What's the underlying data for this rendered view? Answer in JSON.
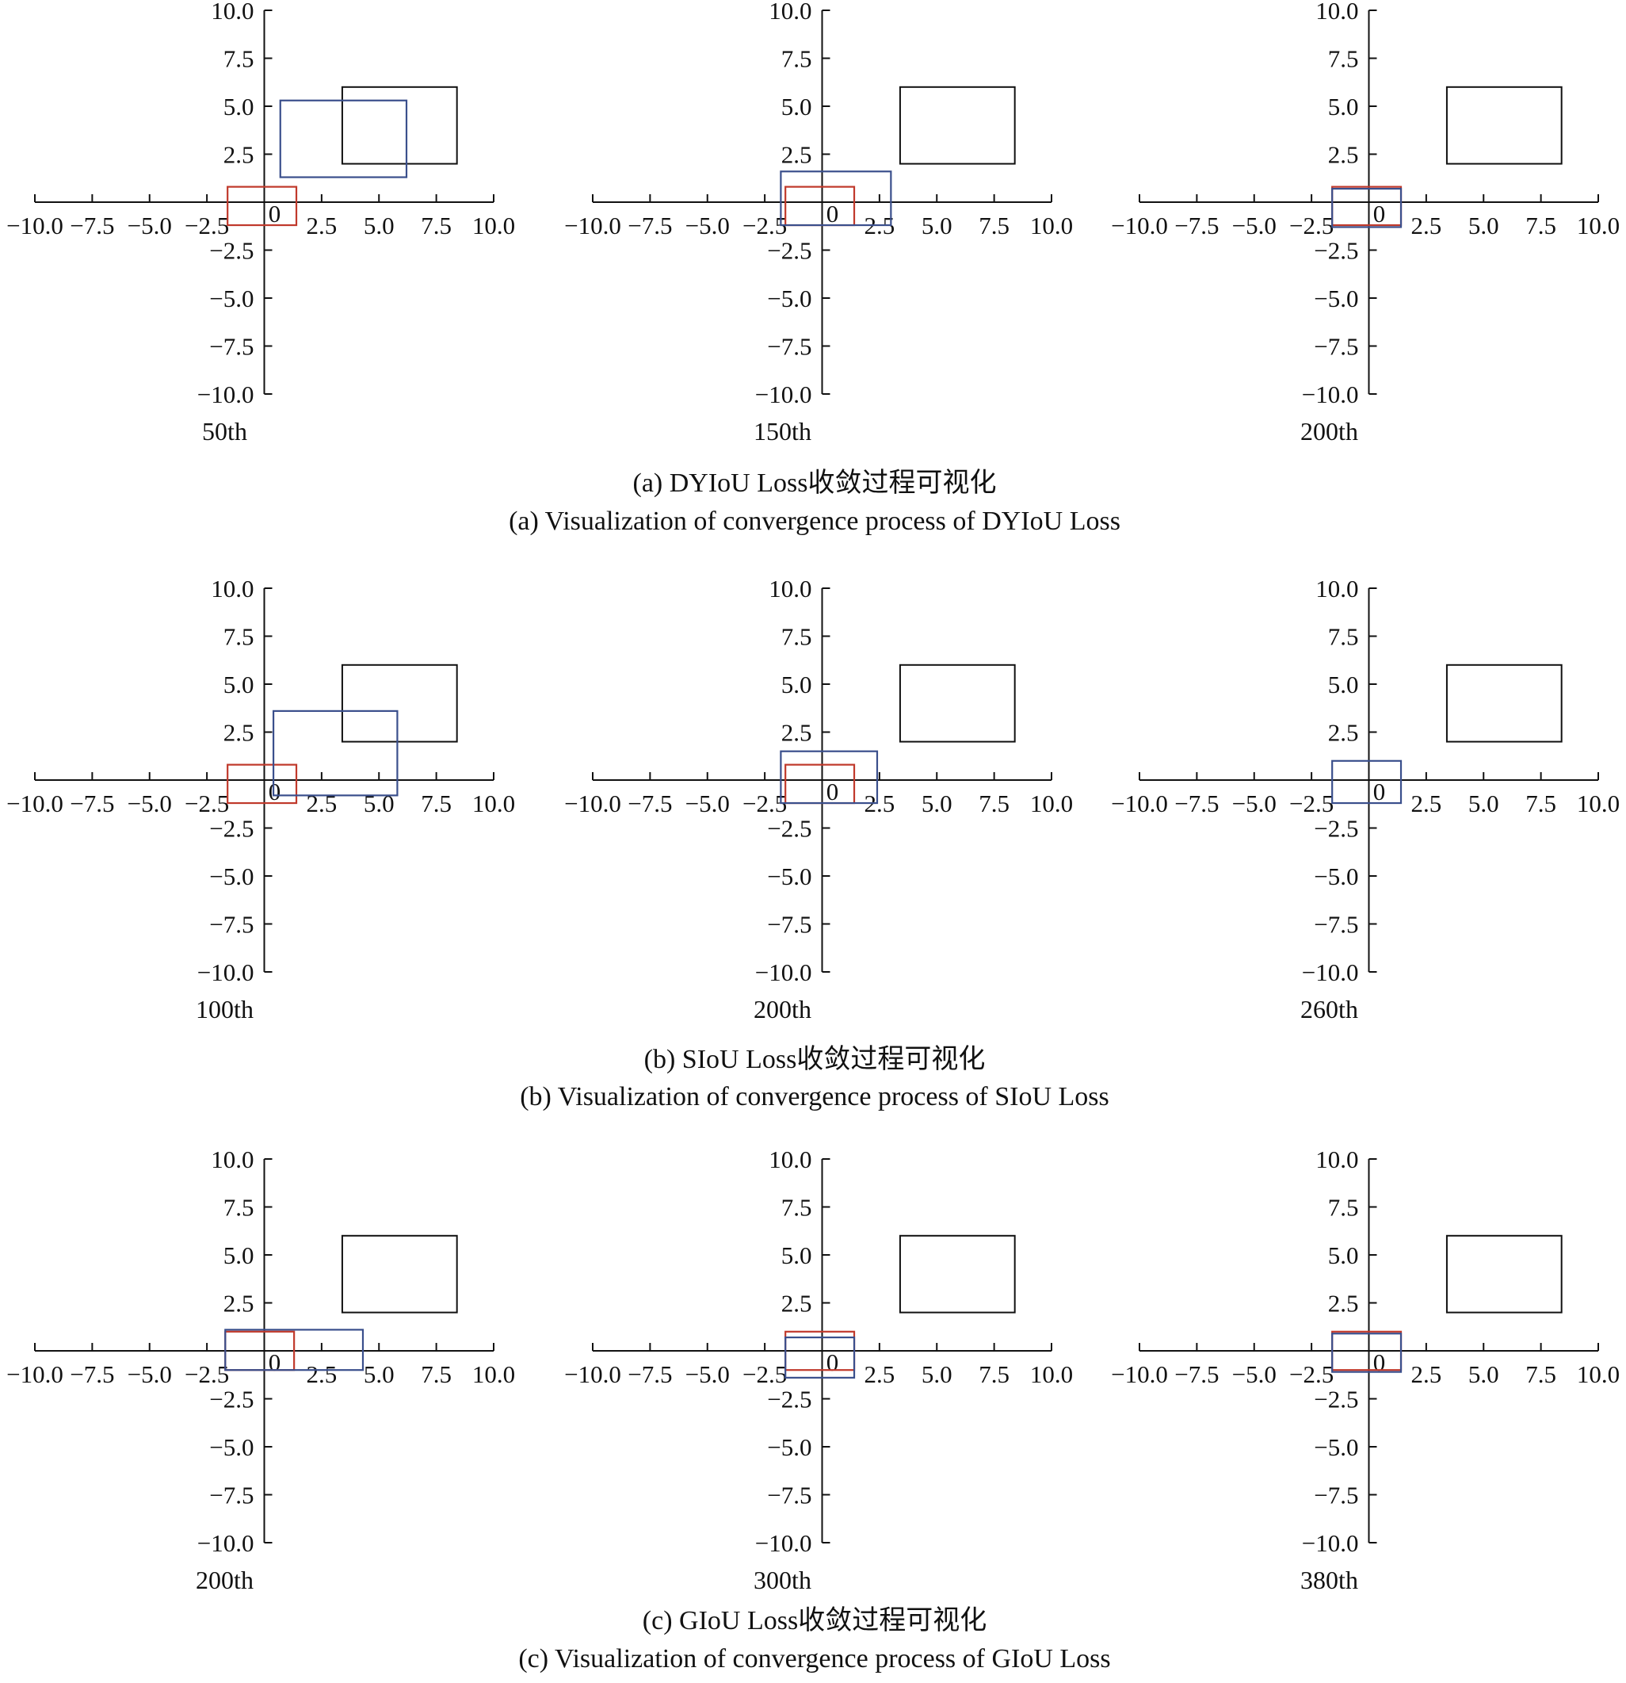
{
  "colors": {
    "target": "#111111",
    "anchor": "#c0392b",
    "predicted": "#3a4f8c",
    "axis": "#111111"
  },
  "chart_data": [
    {
      "type": "rectangles",
      "group": "a",
      "caption_cn": "(a) DYIoU Loss收敛过程可视化",
      "caption_en": "(a) Visualization of convergence process of DYIoU Loss",
      "panels": [
        {
          "subtitle": "50th",
          "xlim": [
            -10,
            10
          ],
          "ylim": [
            -10,
            10
          ],
          "xticks": [
            "-10.0",
            "-7.5",
            "-5.0",
            "-2.5",
            "0",
            "2.5",
            "5.0",
            "7.5",
            "10.0"
          ],
          "yticks": [
            "10.0",
            "7.5",
            "5.0",
            "2.5",
            "-2.5",
            "-5.0",
            "-7.5",
            "-10.0"
          ],
          "boxes": [
            {
              "role": "target",
              "x1": 3.4,
              "y1": 2.0,
              "x2": 8.4,
              "y2": 6.0
            },
            {
              "role": "anchor",
              "x1": -1.6,
              "y1": -1.2,
              "x2": 1.4,
              "y2": 0.8
            },
            {
              "role": "predicted",
              "x1": 0.7,
              "y1": 1.3,
              "x2": 6.2,
              "y2": 5.3
            }
          ]
        },
        {
          "subtitle": "150th",
          "xlim": [
            -10,
            10
          ],
          "ylim": [
            -10,
            10
          ],
          "xticks": [
            "-10.0",
            "-7.5",
            "-5.0",
            "-2.5",
            "0",
            "2.5",
            "5.0",
            "7.5",
            "10.0"
          ],
          "yticks": [
            "10.0",
            "7.5",
            "5.0",
            "2.5",
            "-2.5",
            "-5.0",
            "-7.5",
            "-10.0"
          ],
          "boxes": [
            {
              "role": "target",
              "x1": 3.4,
              "y1": 2.0,
              "x2": 8.4,
              "y2": 6.0
            },
            {
              "role": "anchor",
              "x1": -1.6,
              "y1": -1.2,
              "x2": 1.4,
              "y2": 0.8
            },
            {
              "role": "predicted",
              "x1": -1.8,
              "y1": -1.2,
              "x2": 3.0,
              "y2": 1.6
            }
          ]
        },
        {
          "subtitle": "200th",
          "xlim": [
            -10,
            10
          ],
          "ylim": [
            -10,
            10
          ],
          "xticks": [
            "-10.0",
            "-7.5",
            "-5.0",
            "-2.5",
            "0",
            "2.5",
            "5.0",
            "7.5",
            "10.0"
          ],
          "yticks": [
            "10.0",
            "7.5",
            "5.0",
            "2.5",
            "-2.5",
            "-5.0",
            "-7.5",
            "-10.0"
          ],
          "boxes": [
            {
              "role": "target",
              "x1": 3.4,
              "y1": 2.0,
              "x2": 8.4,
              "y2": 6.0
            },
            {
              "role": "anchor",
              "x1": -1.6,
              "y1": -1.2,
              "x2": 1.4,
              "y2": 0.8
            },
            {
              "role": "predicted",
              "x1": -1.6,
              "y1": -1.3,
              "x2": 1.4,
              "y2": 0.7
            }
          ]
        }
      ]
    },
    {
      "type": "rectangles",
      "group": "b",
      "caption_cn": "(b) SIoU Loss收敛过程可视化",
      "caption_en": "(b) Visualization of convergence process of SIoU Loss",
      "panels": [
        {
          "subtitle": "100th",
          "xlim": [
            -10,
            10
          ],
          "ylim": [
            -10,
            10
          ],
          "xticks": [
            "-10.0",
            "-7.5",
            "-5.0",
            "-2.5",
            "0",
            "2.5",
            "5.0",
            "7.5",
            "10.0"
          ],
          "yticks": [
            "10.0",
            "7.5",
            "5.0",
            "2.5",
            "-2.5",
            "-5.0",
            "-7.5",
            "-10.0"
          ],
          "boxes": [
            {
              "role": "target",
              "x1": 3.4,
              "y1": 2.0,
              "x2": 8.4,
              "y2": 6.0
            },
            {
              "role": "anchor",
              "x1": -1.6,
              "y1": -1.2,
              "x2": 1.4,
              "y2": 0.8
            },
            {
              "role": "predicted",
              "x1": 0.4,
              "y1": -0.8,
              "x2": 5.8,
              "y2": 3.6
            }
          ]
        },
        {
          "subtitle": "200th",
          "xlim": [
            -10,
            10
          ],
          "ylim": [
            -10,
            10
          ],
          "xticks": [
            "-10.0",
            "-7.5",
            "-5.0",
            "-2.5",
            "0",
            "2.5",
            "5.0",
            "7.5",
            "10.0"
          ],
          "yticks": [
            "10.0",
            "7.5",
            "5.0",
            "2.5",
            "-2.5",
            "-5.0",
            "-7.5",
            "-10.0"
          ],
          "boxes": [
            {
              "role": "target",
              "x1": 3.4,
              "y1": 2.0,
              "x2": 8.4,
              "y2": 6.0
            },
            {
              "role": "anchor",
              "x1": -1.6,
              "y1": -1.2,
              "x2": 1.4,
              "y2": 0.8
            },
            {
              "role": "predicted",
              "x1": -1.8,
              "y1": -1.2,
              "x2": 2.4,
              "y2": 1.5
            }
          ]
        },
        {
          "subtitle": "260th",
          "xlim": [
            -10,
            10
          ],
          "ylim": [
            -10,
            10
          ],
          "xticks": [
            "-10.0",
            "-7.5",
            "-5.0",
            "-2.5",
            "0",
            "2.5",
            "5.0",
            "7.5",
            "10.0"
          ],
          "yticks": [
            "10.0",
            "7.5",
            "5.0",
            "2.5",
            "-2.5",
            "-5.0",
            "-7.5",
            "-10.0"
          ],
          "boxes": [
            {
              "role": "target",
              "x1": 3.4,
              "y1": 2.0,
              "x2": 8.4,
              "y2": 6.0
            },
            {
              "role": "predicted",
              "x1": -1.6,
              "y1": -1.2,
              "x2": 1.4,
              "y2": 1.0
            }
          ]
        }
      ]
    },
    {
      "type": "rectangles",
      "group": "c",
      "caption_cn": "(c) GIoU Loss收敛过程可视化",
      "caption_en": "(c) Visualization of convergence process of GIoU Loss",
      "panels": [
        {
          "subtitle": "200th",
          "xlim": [
            -10,
            10
          ],
          "ylim": [
            -10,
            10
          ],
          "xticks": [
            "-10.0",
            "-7.5",
            "-5.0",
            "-2.5",
            "0",
            "2.5",
            "5.0",
            "7.5",
            "10.0"
          ],
          "yticks": [
            "10.0",
            "7.5",
            "5.0",
            "2.5",
            "-2.5",
            "-5.0",
            "-7.5",
            "-10.0"
          ],
          "boxes": [
            {
              "role": "target",
              "x1": 3.4,
              "y1": 2.0,
              "x2": 8.4,
              "y2": 6.0
            },
            {
              "role": "anchor",
              "x1": -1.7,
              "y1": -1.0,
              "x2": 1.3,
              "y2": 1.0
            },
            {
              "role": "predicted",
              "x1": -1.7,
              "y1": -1.0,
              "x2": 4.3,
              "y2": 1.1
            }
          ]
        },
        {
          "subtitle": "300th",
          "xlim": [
            -10,
            10
          ],
          "ylim": [
            -10,
            10
          ],
          "xticks": [
            "-10.0",
            "-7.5",
            "-5.0",
            "-2.5",
            "0",
            "2.5",
            "5.0",
            "7.5",
            "10.0"
          ],
          "yticks": [
            "10.0",
            "7.5",
            "5.0",
            "2.5",
            "-2.5",
            "-5.0",
            "-7.5",
            "-10.0"
          ],
          "boxes": [
            {
              "role": "target",
              "x1": 3.4,
              "y1": 2.0,
              "x2": 8.4,
              "y2": 6.0
            },
            {
              "role": "anchor",
              "x1": -1.6,
              "y1": -1.0,
              "x2": 1.4,
              "y2": 1.0
            },
            {
              "role": "predicted",
              "x1": -1.6,
              "y1": -1.4,
              "x2": 1.4,
              "y2": 0.7
            }
          ]
        },
        {
          "subtitle": "380th",
          "xlim": [
            -10,
            10
          ],
          "ylim": [
            -10,
            10
          ],
          "xticks": [
            "-10.0",
            "-7.5",
            "-5.0",
            "-2.5",
            "0",
            "2.5",
            "5.0",
            "7.5",
            "10.0"
          ],
          "yticks": [
            "10.0",
            "7.5",
            "5.0",
            "2.5",
            "-2.5",
            "-5.0",
            "-7.5",
            "-10.0"
          ],
          "boxes": [
            {
              "role": "target",
              "x1": 3.4,
              "y1": 2.0,
              "x2": 8.4,
              "y2": 6.0
            },
            {
              "role": "anchor",
              "x1": -1.6,
              "y1": -1.0,
              "x2": 1.4,
              "y2": 1.0
            },
            {
              "role": "predicted",
              "x1": -1.6,
              "y1": -1.1,
              "x2": 1.4,
              "y2": 0.9
            }
          ]
        }
      ]
    }
  ]
}
